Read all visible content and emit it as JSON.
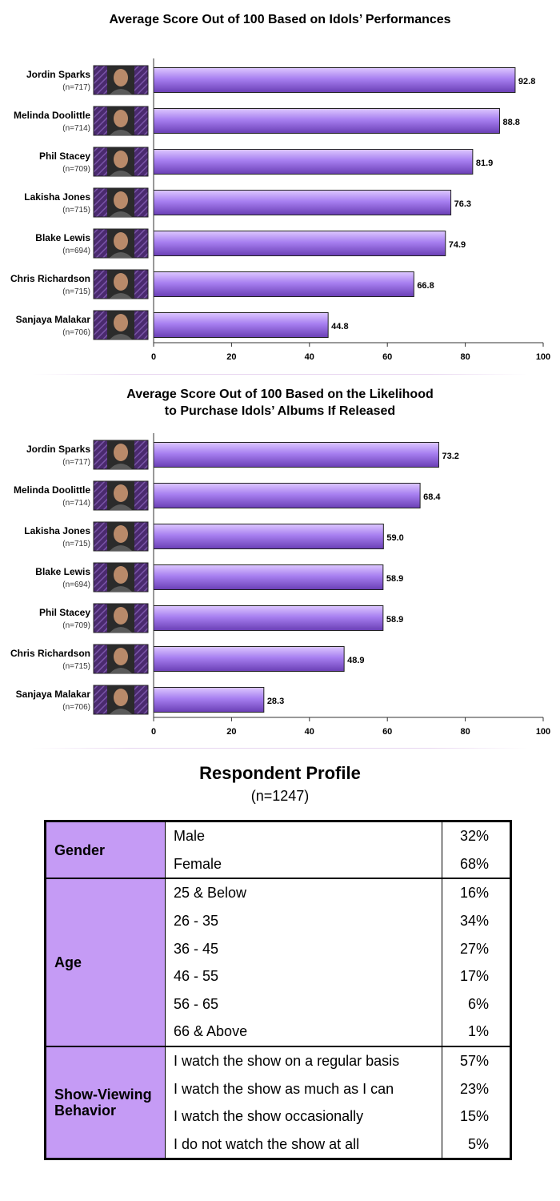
{
  "chart_data": [
    {
      "type": "bar",
      "orientation": "horizontal",
      "title_lines": [
        "Average Score Out of 100 Based on Idols’ Performances"
      ],
      "categories": [
        "Jordin Sparks",
        "Melinda Doolittle",
        "Phil Stacey",
        "Lakisha Jones",
        "Blake Lewis",
        "Chris Richardson",
        "Sanjaya Malakar"
      ],
      "sample_sizes": [
        "(n=717)",
        "(n=714)",
        "(n=709)",
        "(n=715)",
        "(n=694)",
        "(n=715)",
        "(n=706)"
      ],
      "values": [
        92.8,
        88.8,
        81.9,
        76.3,
        74.9,
        66.8,
        44.8
      ],
      "value_labels": [
        "92.8",
        "88.8",
        "81.9",
        "76.3",
        "74.9",
        "66.8",
        "44.8"
      ],
      "xlim": [
        0,
        100
      ],
      "ticks": [
        "0",
        "20",
        "40",
        "60",
        "80",
        "100"
      ],
      "xlabel": "",
      "ylabel": "",
      "grid": false
    },
    {
      "type": "bar",
      "orientation": "horizontal",
      "title_lines": [
        "Average Score Out of 100 Based on the Likelihood",
        "to Purchase Idols’ Albums If Released"
      ],
      "categories": [
        "Jordin Sparks",
        "Melinda Doolittle",
        "Lakisha Jones",
        "Blake Lewis",
        "Phil Stacey",
        "Chris Richardson",
        "Sanjaya Malakar"
      ],
      "sample_sizes": [
        "(n=717)",
        "(n=714)",
        "(n=715)",
        "(n=694)",
        "(n=709)",
        "(n=715)",
        "(n=706)"
      ],
      "values": [
        73.2,
        68.4,
        59.0,
        58.9,
        58.9,
        48.9,
        28.3
      ],
      "value_labels": [
        "73.2",
        "68.4",
        "59.0",
        "58.9",
        "58.9",
        "48.9",
        "28.3"
      ],
      "xlim": [
        0,
        100
      ],
      "ticks": [
        "0",
        "20",
        "40",
        "60",
        "80",
        "100"
      ],
      "xlabel": "",
      "ylabel": "",
      "grid": false
    }
  ],
  "colors": {
    "bar_light": "#ddc8ff",
    "bar_mid": "#a77ff0",
    "bar_dark": "#6a3fb5",
    "category_cell": "#c59bf5"
  },
  "profile": {
    "title": "Respondent Profile",
    "subtitle": "(n=1247)",
    "groups": [
      {
        "label": "Gender",
        "rows": [
          {
            "option": "Male",
            "value": "32%"
          },
          {
            "option": "Female",
            "value": "68%"
          }
        ]
      },
      {
        "label": "Age",
        "rows": [
          {
            "option": "25 & Below",
            "value": "16%"
          },
          {
            "option": "26 - 35",
            "value": "34%"
          },
          {
            "option": "36 - 45",
            "value": "27%"
          },
          {
            "option": "46 - 55",
            "value": "17%"
          },
          {
            "option": "56 - 65",
            "value": "6%"
          },
          {
            "option": "66 & Above",
            "value": "1%"
          }
        ]
      },
      {
        "label": "Show-Viewing Behavior",
        "rows": [
          {
            "option": "I watch the show on a regular basis",
            "value": "57%"
          },
          {
            "option": "I watch the show as much as I can",
            "value": "23%"
          },
          {
            "option": "I watch the show occasionally",
            "value": "15%"
          },
          {
            "option": "I do not watch the show at all",
            "value": "5%"
          }
        ]
      }
    ]
  }
}
